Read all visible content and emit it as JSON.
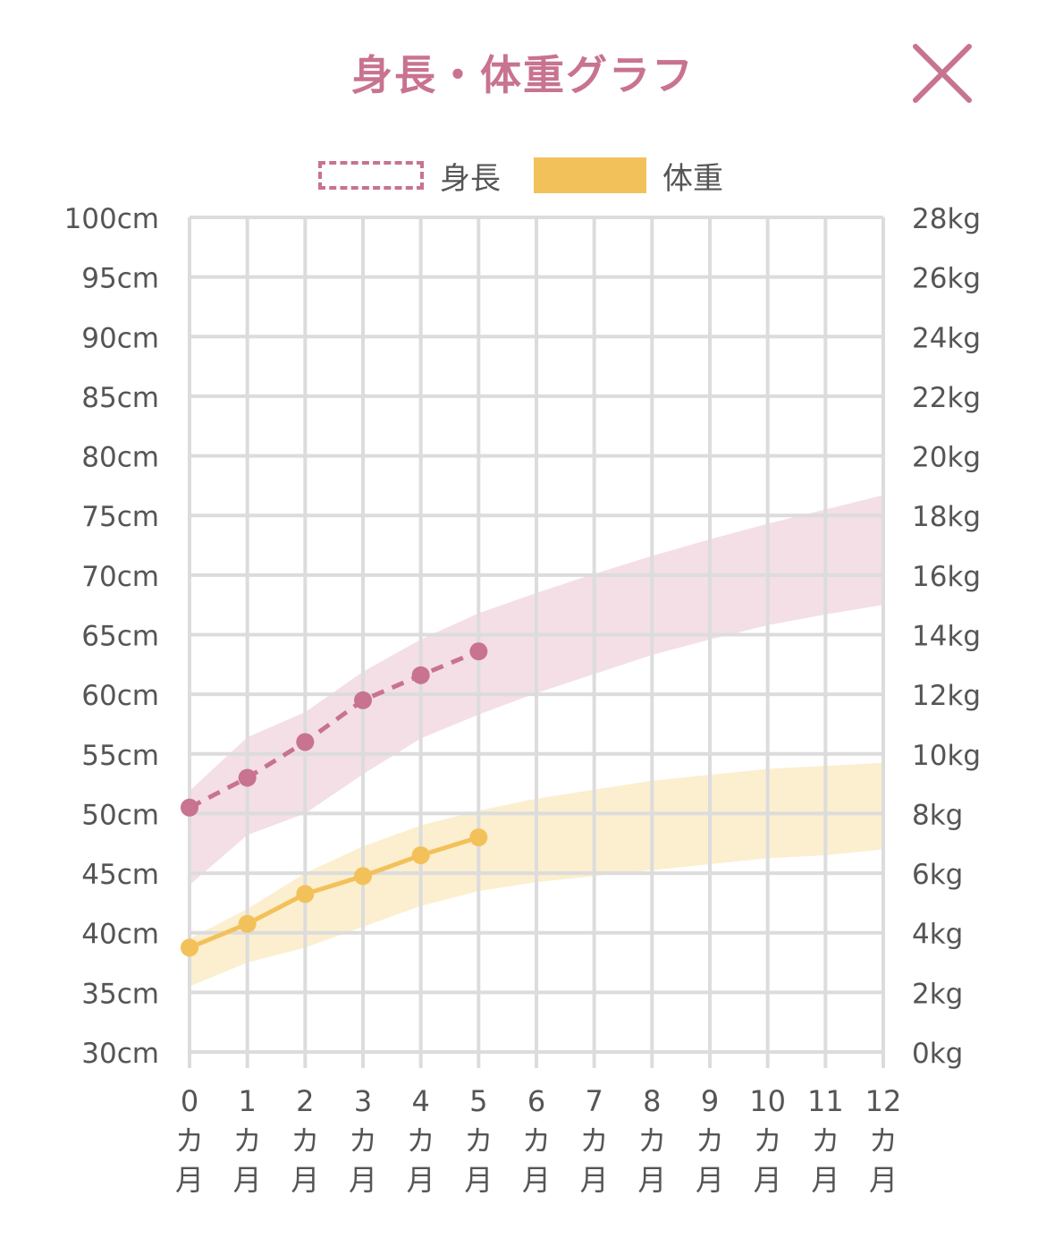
{
  "header": {
    "title": "身長・体重グラフ"
  },
  "icons": {
    "close": "close-icon"
  },
  "colors": {
    "height": "#c8738f",
    "height_band": "#f4dfe6",
    "weight": "#f3c15a",
    "weight_band": "#fcefcf",
    "grid": "#dcdcdc",
    "axis_text": "#555555"
  },
  "legend": [
    {
      "label": "身長",
      "style": "dashed-outline"
    },
    {
      "label": "体重",
      "style": "filled"
    }
  ],
  "chart_data": {
    "type": "line",
    "categories": [
      "0",
      "1",
      "2",
      "3",
      "4",
      "5",
      "6",
      "7",
      "8",
      "9",
      "10",
      "11",
      "12"
    ],
    "category_suffix": [
      "カ",
      "月"
    ],
    "left_axis": {
      "unit": "cm",
      "min": 30,
      "max": 100,
      "step": 5,
      "tick_labels": [
        "100cm",
        "95cm",
        "90cm",
        "85cm",
        "80cm",
        "75cm",
        "70cm",
        "65cm",
        "60cm",
        "55cm",
        "50cm",
        "45cm",
        "40cm",
        "35cm",
        "30cm"
      ]
    },
    "right_axis": {
      "unit": "kg",
      "min": 0,
      "max": 28,
      "step": 2,
      "tick_labels": [
        "28kg",
        "26kg",
        "24kg",
        "22kg",
        "20kg",
        "18kg",
        "16kg",
        "14kg",
        "12kg",
        "10kg",
        "8kg",
        "6kg",
        "4kg",
        "2kg",
        "0kg"
      ]
    },
    "grid": true,
    "legend_position": "top-center",
    "series": [
      {
        "name": "身長",
        "axis": "left",
        "line_style": "dashed",
        "x": [
          0,
          1,
          2,
          3,
          4,
          5
        ],
        "values": [
          50.5,
          53.0,
          56.0,
          59.5,
          61.6,
          63.6
        ],
        "band_x": [
          0,
          1,
          2,
          3,
          4,
          5,
          6,
          7,
          8,
          9,
          10,
          11,
          12
        ],
        "band_upper": [
          51.9,
          56.4,
          58.5,
          61.9,
          64.6,
          66.8,
          68.5,
          70.1,
          71.6,
          73.0,
          74.3,
          75.5,
          76.7
        ],
        "band_lower": [
          44.0,
          48.2,
          50.0,
          53.3,
          56.3,
          58.3,
          60.1,
          61.7,
          63.3,
          64.6,
          65.8,
          66.7,
          67.5
        ]
      },
      {
        "name": "体重",
        "axis": "right",
        "line_style": "solid",
        "x": [
          0,
          1,
          2,
          3,
          4,
          5
        ],
        "values": [
          3.5,
          4.3,
          5.3,
          5.9,
          6.6,
          7.2
        ],
        "band_x": [
          0,
          1,
          2,
          3,
          4,
          5,
          6,
          7,
          8,
          9,
          10,
          11,
          12
        ],
        "band_upper": [
          3.8,
          4.8,
          6.0,
          6.9,
          7.6,
          8.1,
          8.5,
          8.8,
          9.1,
          9.3,
          9.5,
          9.6,
          9.7
        ],
        "band_lower": [
          2.2,
          3.0,
          3.5,
          4.2,
          4.9,
          5.4,
          5.7,
          5.9,
          6.1,
          6.3,
          6.5,
          6.6,
          6.8
        ]
      }
    ]
  }
}
